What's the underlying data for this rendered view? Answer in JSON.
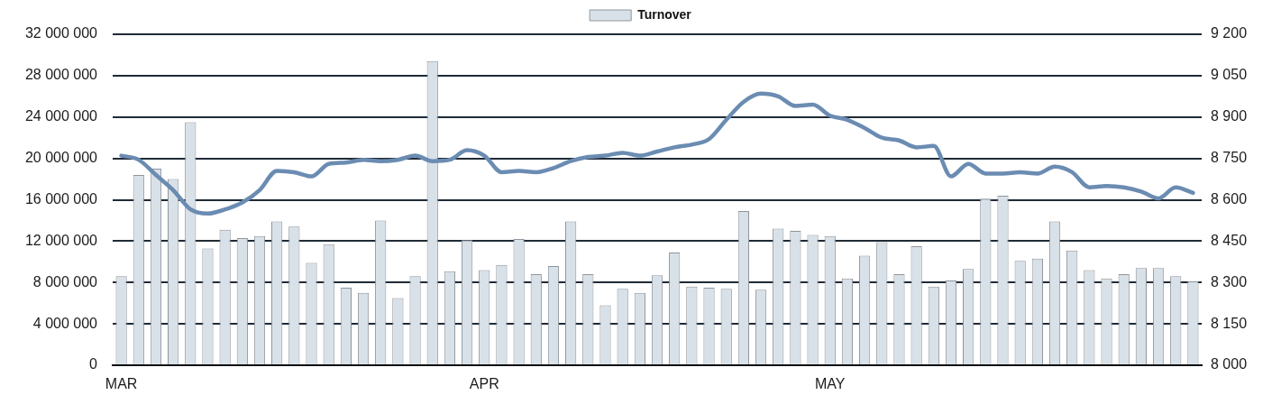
{
  "chart_data": {
    "type": "bar",
    "categories": [
      "MAR",
      null,
      null,
      null,
      null,
      null,
      null,
      null,
      null,
      null,
      null,
      null,
      null,
      null,
      null,
      null,
      null,
      null,
      null,
      null,
      null,
      "APR",
      null,
      null,
      null,
      null,
      null,
      null,
      null,
      null,
      null,
      null,
      null,
      null,
      null,
      null,
      null,
      null,
      null,
      null,
      null,
      "MAY",
      null,
      null,
      null,
      null,
      null,
      null,
      null,
      null,
      null,
      null,
      null,
      null,
      null,
      null,
      null,
      null,
      null,
      null,
      null,
      null,
      null
    ],
    "series": [
      {
        "name": "Turnover",
        "color": "#d9e1e8",
        "values": [
          8600000,
          18400000,
          19000000,
          18000000,
          23500000,
          11300000,
          13100000,
          12300000,
          12500000,
          13900000,
          13400000,
          9900000,
          11700000,
          7500000,
          7000000,
          14000000,
          6500000,
          8600000,
          29400000,
          9100000,
          12100000,
          9200000,
          9700000,
          12200000,
          8800000,
          9600000,
          13900000,
          8800000,
          5800000,
          7400000,
          7000000,
          8700000,
          10900000,
          7600000,
          7500000,
          7400000,
          14900000,
          7300000,
          13200000,
          13000000,
          12600000,
          12500000,
          8400000,
          10600000,
          11900000,
          8800000,
          11500000,
          7600000,
          8200000,
          9300000,
          16100000,
          16400000,
          10100000,
          10300000,
          13900000,
          11100000,
          9200000,
          8400000,
          8800000,
          9400000,
          9400000,
          8600000,
          8100000
        ]
      },
      {
        "type": "line",
        "axis": "y2",
        "color": "#6b8cb2",
        "values": [
          8760,
          8745,
          8690,
          8635,
          8565,
          8550,
          8565,
          8590,
          8635,
          8705,
          8700,
          8685,
          8730,
          8735,
          8745,
          8740,
          8745,
          8760,
          8740,
          8745,
          8780,
          8760,
          8700,
          8705,
          8700,
          8715,
          8740,
          8755,
          8760,
          8770,
          8760,
          8775,
          8790,
          8800,
          8820,
          8890,
          8955,
          8985,
          8975,
          8940,
          8945,
          8905,
          8890,
          8860,
          8825,
          8815,
          8790,
          8795,
          8685,
          8730,
          8695,
          8695,
          8700,
          8695,
          8720,
          8700,
          8645,
          8650,
          8645,
          8630,
          8605,
          8645,
          8625
        ]
      }
    ],
    "ylim": [
      0,
      32000000
    ],
    "yticks": [
      {
        "value": 0,
        "label": "0"
      },
      {
        "value": 4000000,
        "label": "4 000 000"
      },
      {
        "value": 8000000,
        "label": "8 000 000"
      },
      {
        "value": 12000000,
        "label": "12 000 000"
      },
      {
        "value": 16000000,
        "label": "16 000 000"
      },
      {
        "value": 20000000,
        "label": "20 000 000"
      },
      {
        "value": 24000000,
        "label": "24 000 000"
      },
      {
        "value": 28000000,
        "label": "28 000 000"
      },
      {
        "value": 32000000,
        "label": "32 000 000"
      }
    ],
    "y2lim": [
      8000,
      9200
    ],
    "y2ticks": [
      {
        "value": 8000,
        "label": "8 000"
      },
      {
        "value": 8150,
        "label": "8 150"
      },
      {
        "value": 8300,
        "label": "8 300"
      },
      {
        "value": 8450,
        "label": "8 450"
      },
      {
        "value": 8600,
        "label": "8 600"
      },
      {
        "value": 8750,
        "label": "8 750"
      },
      {
        "value": 8900,
        "label": "8 900"
      },
      {
        "value": 9050,
        "label": "9 050"
      },
      {
        "value": 9200,
        "label": "9 200"
      }
    ],
    "grid": "y",
    "legend": "top",
    "marker": "none"
  }
}
